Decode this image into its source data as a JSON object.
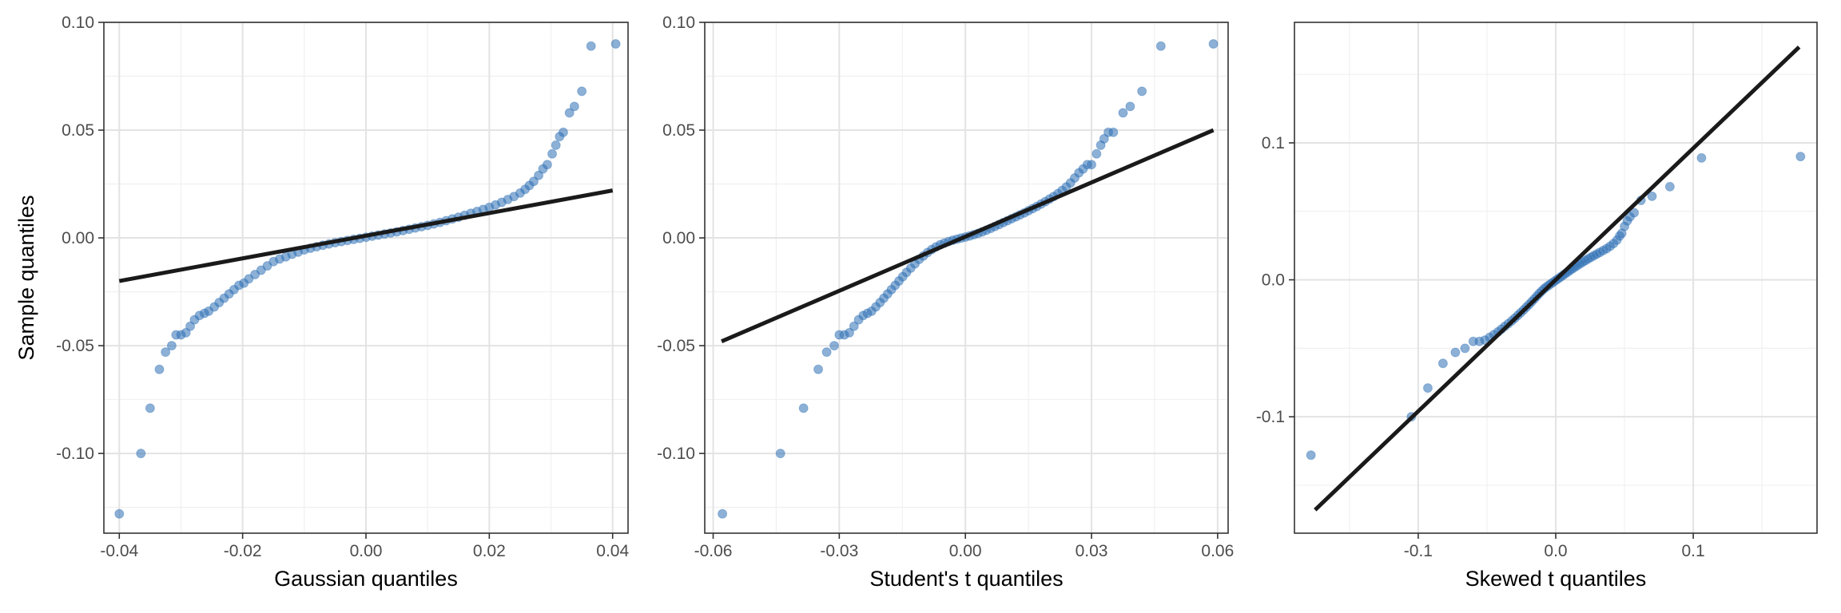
{
  "chart_data": [
    {
      "type": "scatter",
      "xlabel": "Gaussian quantiles",
      "ylabel": "Sample quantiles",
      "xlim": [
        -0.0425,
        0.0425
      ],
      "ylim": [
        -0.137,
        0.1
      ],
      "xticks": [
        -0.04,
        -0.02,
        0.0,
        0.02,
        0.04
      ],
      "xtick_labels": [
        "-0.04",
        "-0.02",
        "0.00",
        "0.02",
        "0.04"
      ],
      "yticks": [
        -0.1,
        -0.05,
        0.0,
        0.05,
        0.1
      ],
      "ytick_labels": [
        "-0.10",
        "-0.05",
        "0.00",
        "0.05",
        "0.10"
      ],
      "grid": true,
      "reference_line": {
        "x": [
          -0.04,
          0.04
        ],
        "y": [
          -0.02,
          0.022
        ]
      },
      "points": [
        [
          -0.04,
          -0.128
        ],
        [
          -0.0365,
          -0.1
        ],
        [
          -0.035,
          -0.079
        ],
        [
          -0.0335,
          -0.061
        ],
        [
          -0.0325,
          -0.053
        ],
        [
          -0.0315,
          -0.05
        ],
        [
          -0.0308,
          -0.045
        ],
        [
          -0.03,
          -0.045
        ],
        [
          -0.0292,
          -0.044
        ],
        [
          -0.0285,
          -0.041
        ],
        [
          -0.0278,
          -0.038
        ],
        [
          -0.027,
          -0.036
        ],
        [
          -0.0262,
          -0.035
        ],
        [
          -0.0255,
          -0.034
        ],
        [
          -0.0246,
          -0.032
        ],
        [
          -0.0238,
          -0.03
        ],
        [
          -0.023,
          -0.028
        ],
        [
          -0.0222,
          -0.026
        ],
        [
          -0.0214,
          -0.024
        ],
        [
          -0.0206,
          -0.022
        ],
        [
          -0.0198,
          -0.021
        ],
        [
          -0.019,
          -0.019
        ],
        [
          -0.018,
          -0.017
        ],
        [
          -0.017,
          -0.015
        ],
        [
          -0.016,
          -0.013
        ],
        [
          -0.015,
          -0.011
        ],
        [
          -0.014,
          -0.0098
        ],
        [
          -0.013,
          -0.0088
        ],
        [
          -0.012,
          -0.0076
        ],
        [
          -0.011,
          -0.0066
        ],
        [
          -0.01,
          -0.0056
        ],
        [
          -0.009,
          -0.0048
        ],
        [
          -0.008,
          -0.0041
        ],
        [
          -0.007,
          -0.0034
        ],
        [
          -0.006,
          -0.0028
        ],
        [
          -0.005,
          -0.0022
        ],
        [
          -0.004,
          -0.0017
        ],
        [
          -0.003,
          -0.0012
        ],
        [
          -0.002,
          -0.0007
        ],
        [
          -0.001,
          -0.0002
        ],
        [
          0.0,
          0.0003
        ],
        [
          0.001,
          0.0008
        ],
        [
          0.002,
          0.0013
        ],
        [
          0.003,
          0.0018
        ],
        [
          0.004,
          0.0023
        ],
        [
          0.005,
          0.0028
        ],
        [
          0.006,
          0.0034
        ],
        [
          0.007,
          0.004
        ],
        [
          0.008,
          0.0046
        ],
        [
          0.009,
          0.0052
        ],
        [
          0.01,
          0.0058
        ],
        [
          0.011,
          0.0065
        ],
        [
          0.012,
          0.0072
        ],
        [
          0.013,
          0.008
        ],
        [
          0.014,
          0.0088
        ],
        [
          0.015,
          0.0096
        ],
        [
          0.016,
          0.0105
        ],
        [
          0.017,
          0.0114
        ],
        [
          0.018,
          0.0123
        ],
        [
          0.019,
          0.0132
        ],
        [
          0.02,
          0.0142
        ],
        [
          0.021,
          0.0153
        ],
        [
          0.022,
          0.0165
        ],
        [
          0.023,
          0.0178
        ],
        [
          0.024,
          0.0192
        ],
        [
          0.025,
          0.0208
        ],
        [
          0.0258,
          0.0225
        ],
        [
          0.0265,
          0.0243
        ],
        [
          0.0272,
          0.0262
        ],
        [
          0.028,
          0.029
        ],
        [
          0.0287,
          0.032
        ],
        [
          0.0294,
          0.034
        ],
        [
          0.0302,
          0.039
        ],
        [
          0.0308,
          0.043
        ],
        [
          0.0314,
          0.047
        ],
        [
          0.032,
          0.049
        ],
        [
          0.033,
          0.058
        ],
        [
          0.0338,
          0.061
        ],
        [
          0.035,
          0.068
        ],
        [
          0.0365,
          0.089
        ],
        [
          0.0405,
          0.09
        ]
      ]
    },
    {
      "type": "scatter",
      "xlabel": "Student's t quantiles",
      "ylabel": "",
      "xlim": [
        -0.062,
        0.0625
      ],
      "ylim": [
        -0.137,
        0.1
      ],
      "xticks": [
        -0.06,
        -0.03,
        0.0,
        0.03,
        0.06
      ],
      "xtick_labels": [
        "-0.06",
        "-0.03",
        "0.00",
        "0.03",
        "0.06"
      ],
      "yticks": [
        -0.1,
        -0.05,
        0.0,
        0.05,
        0.1
      ],
      "ytick_labels": [
        "-0.10",
        "-0.05",
        "0.00",
        "0.05",
        "0.10"
      ],
      "grid": true,
      "reference_line": {
        "x": [
          -0.058,
          0.059
        ],
        "y": [
          -0.048,
          0.05
        ]
      },
      "points": [
        [
          -0.0578,
          -0.128
        ],
        [
          -0.044,
          -0.1
        ],
        [
          -0.0385,
          -0.079
        ],
        [
          -0.035,
          -0.061
        ],
        [
          -0.033,
          -0.053
        ],
        [
          -0.0312,
          -0.05
        ],
        [
          -0.03,
          -0.045
        ],
        [
          -0.0288,
          -0.045
        ],
        [
          -0.0276,
          -0.044
        ],
        [
          -0.0265,
          -0.041
        ],
        [
          -0.0254,
          -0.038
        ],
        [
          -0.0243,
          -0.036
        ],
        [
          -0.0233,
          -0.035
        ],
        [
          -0.0223,
          -0.034
        ],
        [
          -0.0213,
          -0.032
        ],
        [
          -0.0203,
          -0.03
        ],
        [
          -0.0194,
          -0.028
        ],
        [
          -0.0185,
          -0.026
        ],
        [
          -0.0176,
          -0.024
        ],
        [
          -0.0167,
          -0.022
        ],
        [
          -0.0158,
          -0.02
        ],
        [
          -0.0149,
          -0.018
        ],
        [
          -0.014,
          -0.016
        ],
        [
          -0.013,
          -0.014
        ],
        [
          -0.012,
          -0.012
        ],
        [
          -0.011,
          -0.01
        ],
        [
          -0.01,
          -0.0084
        ],
        [
          -0.009,
          -0.0068
        ],
        [
          -0.008,
          -0.0054
        ],
        [
          -0.007,
          -0.0042
        ],
        [
          -0.006,
          -0.0032
        ],
        [
          -0.005,
          -0.0024
        ],
        [
          -0.004,
          -0.0017
        ],
        [
          -0.003,
          -0.0011
        ],
        [
          -0.002,
          -0.0006
        ],
        [
          -0.001,
          -0.0001
        ],
        [
          0.0,
          0.0004
        ],
        [
          0.001,
          0.0009
        ],
        [
          0.002,
          0.0015
        ],
        [
          0.003,
          0.0021
        ],
        [
          0.004,
          0.0028
        ],
        [
          0.005,
          0.0036
        ],
        [
          0.006,
          0.0044
        ],
        [
          0.007,
          0.0053
        ],
        [
          0.008,
          0.0062
        ],
        [
          0.009,
          0.0071
        ],
        [
          0.01,
          0.008
        ],
        [
          0.011,
          0.0089
        ],
        [
          0.012,
          0.0098
        ],
        [
          0.013,
          0.0107
        ],
        [
          0.014,
          0.0116
        ],
        [
          0.015,
          0.0126
        ],
        [
          0.016,
          0.0136
        ],
        [
          0.017,
          0.0146
        ],
        [
          0.018,
          0.0157
        ],
        [
          0.019,
          0.0168
        ],
        [
          0.02,
          0.018
        ],
        [
          0.021,
          0.0192
        ],
        [
          0.022,
          0.0205
        ],
        [
          0.023,
          0.022
        ],
        [
          0.024,
          0.0236
        ],
        [
          0.025,
          0.0255
        ],
        [
          0.026,
          0.0278
        ],
        [
          0.027,
          0.0302
        ],
        [
          0.028,
          0.032
        ],
        [
          0.029,
          0.034
        ],
        [
          0.03,
          0.034
        ],
        [
          0.0312,
          0.039
        ],
        [
          0.0322,
          0.043
        ],
        [
          0.033,
          0.046
        ],
        [
          0.034,
          0.049
        ],
        [
          0.0352,
          0.049
        ],
        [
          0.0375,
          0.058
        ],
        [
          0.0392,
          0.061
        ],
        [
          0.042,
          0.068
        ],
        [
          0.0465,
          0.089
        ],
        [
          0.059,
          0.09
        ]
      ]
    },
    {
      "type": "scatter",
      "xlabel": "Skewed t quantiles",
      "ylabel": "",
      "xlim": [
        -0.19,
        0.19
      ],
      "ylim": [
        -0.185,
        0.188
      ],
      "xticks": [
        -0.1,
        0.0,
        0.1
      ],
      "xtick_labels": [
        "-0.1",
        "0.0",
        "0.1"
      ],
      "yticks": [
        -0.1,
        0.0,
        0.1
      ],
      "ytick_labels": [
        "-0.1",
        "0.0",
        "0.1"
      ],
      "grid": true,
      "reference_line": {
        "x": [
          -0.175,
          0.177
        ],
        "y": [
          -0.168,
          0.17
        ]
      },
      "points": [
        [
          -0.178,
          -0.128
        ],
        [
          -0.105,
          -0.1
        ],
        [
          -0.093,
          -0.079
        ],
        [
          -0.082,
          -0.061
        ],
        [
          -0.073,
          -0.053
        ],
        [
          -0.066,
          -0.05
        ],
        [
          -0.06,
          -0.045
        ],
        [
          -0.0555,
          -0.045
        ],
        [
          -0.0515,
          -0.044
        ],
        [
          -0.048,
          -0.042
        ],
        [
          -0.045,
          -0.04
        ],
        [
          -0.042,
          -0.038
        ],
        [
          -0.0395,
          -0.036
        ],
        [
          -0.037,
          -0.034
        ],
        [
          -0.0345,
          -0.032
        ],
        [
          -0.032,
          -0.03
        ],
        [
          -0.0298,
          -0.028
        ],
        [
          -0.0276,
          -0.026
        ],
        [
          -0.0255,
          -0.024
        ],
        [
          -0.0234,
          -0.022
        ],
        [
          -0.0214,
          -0.02
        ],
        [
          -0.0194,
          -0.018
        ],
        [
          -0.0175,
          -0.016
        ],
        [
          -0.0156,
          -0.014
        ],
        [
          -0.0138,
          -0.012
        ],
        [
          -0.012,
          -0.01
        ],
        [
          -0.0102,
          -0.0082
        ],
        [
          -0.0085,
          -0.0066
        ],
        [
          -0.0068,
          -0.0052
        ],
        [
          -0.0051,
          -0.004
        ],
        [
          -0.0034,
          -0.0028
        ],
        [
          -0.0017,
          -0.0016
        ],
        [
          0.0,
          -0.0004
        ],
        [
          0.0017,
          0.0008
        ],
        [
          0.0034,
          0.002
        ],
        [
          0.0051,
          0.0032
        ],
        [
          0.0068,
          0.0044
        ],
        [
          0.0085,
          0.0056
        ],
        [
          0.0102,
          0.0068
        ],
        [
          0.012,
          0.008
        ],
        [
          0.0138,
          0.0092
        ],
        [
          0.0156,
          0.0104
        ],
        [
          0.0175,
          0.0116
        ],
        [
          0.0194,
          0.0128
        ],
        [
          0.0214,
          0.014
        ],
        [
          0.0234,
          0.0152
        ],
        [
          0.0255,
          0.0164
        ],
        [
          0.0276,
          0.0176
        ],
        [
          0.0298,
          0.0188
        ],
        [
          0.032,
          0.02
        ],
        [
          0.0345,
          0.0214
        ],
        [
          0.037,
          0.0228
        ],
        [
          0.0395,
          0.0245
        ],
        [
          0.042,
          0.0265
        ],
        [
          0.0445,
          0.029
        ],
        [
          0.0465,
          0.032
        ],
        [
          0.048,
          0.034
        ],
        [
          0.05,
          0.039
        ],
        [
          0.052,
          0.043
        ],
        [
          0.054,
          0.046
        ],
        [
          0.057,
          0.049
        ],
        [
          0.062,
          0.058
        ],
        [
          0.07,
          0.061
        ],
        [
          0.083,
          0.068
        ],
        [
          0.106,
          0.089
        ],
        [
          0.178,
          0.09
        ]
      ]
    }
  ]
}
